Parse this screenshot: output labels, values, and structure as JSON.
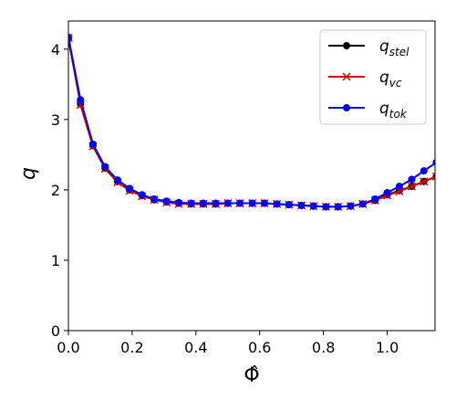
{
  "chart_data": {
    "type": "line",
    "xlabel": "Φ̂",
    "ylabel": "q",
    "xlim": [
      0.0,
      1.15
    ],
    "ylim": [
      0,
      4.4
    ],
    "xticks": [
      0.0,
      0.2,
      0.4,
      0.6,
      0.8,
      1.0
    ],
    "xtick_labels": [
      "0.0",
      "0.2",
      "0.4",
      "0.6",
      "0.8",
      "1.0"
    ],
    "yticks": [
      0,
      1,
      2,
      3,
      4
    ],
    "ytick_labels": [
      "0",
      "1",
      "2",
      "3",
      "4"
    ],
    "grid": false,
    "legend_position": "top-right",
    "x": [
      0.0,
      0.038,
      0.077,
      0.115,
      0.154,
      0.192,
      0.231,
      0.269,
      0.308,
      0.346,
      0.385,
      0.423,
      0.462,
      0.5,
      0.538,
      0.577,
      0.615,
      0.654,
      0.692,
      0.731,
      0.769,
      0.808,
      0.846,
      0.885,
      0.923,
      0.962,
      1.0,
      1.038,
      1.077,
      1.115,
      1.154
    ],
    "series": [
      {
        "name": "q_stel",
        "label_main": "q",
        "label_sub": "stel",
        "color": "#000000",
        "marker": "circle",
        "values": [
          4.15,
          3.22,
          2.63,
          2.31,
          2.12,
          2.0,
          1.92,
          1.86,
          1.83,
          1.81,
          1.8,
          1.8,
          1.8,
          1.81,
          1.81,
          1.81,
          1.81,
          1.8,
          1.79,
          1.78,
          1.77,
          1.76,
          1.76,
          1.77,
          1.8,
          1.85,
          1.93,
          1.99,
          2.05,
          2.12,
          2.19
        ]
      },
      {
        "name": "q_vc",
        "label_main": "q",
        "label_sub": "vc",
        "color": "#dd0000",
        "marker": "x",
        "values": [
          4.16,
          3.21,
          2.62,
          2.3,
          2.11,
          1.99,
          1.91,
          1.86,
          1.82,
          1.8,
          1.8,
          1.8,
          1.8,
          1.81,
          1.81,
          1.81,
          1.81,
          1.8,
          1.79,
          1.78,
          1.77,
          1.76,
          1.76,
          1.77,
          1.8,
          1.85,
          1.92,
          1.98,
          2.05,
          2.12,
          2.19
        ]
      },
      {
        "name": "q_tok",
        "label_main": "q",
        "label_sub": "tok",
        "color": "#0000ff",
        "marker": "circle",
        "values": [
          4.17,
          3.28,
          2.65,
          2.33,
          2.14,
          2.02,
          1.93,
          1.87,
          1.84,
          1.82,
          1.81,
          1.81,
          1.81,
          1.81,
          1.81,
          1.81,
          1.81,
          1.8,
          1.79,
          1.78,
          1.77,
          1.76,
          1.76,
          1.77,
          1.8,
          1.87,
          1.96,
          2.05,
          2.15,
          2.27,
          2.39
        ]
      }
    ]
  }
}
